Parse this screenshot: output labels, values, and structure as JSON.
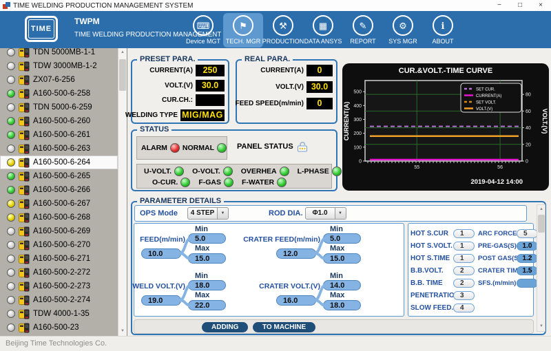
{
  "window": {
    "title": "TIME WELDING PRODUCTION MANAGEMENT SYSTEM",
    "minimize_glyph": "−",
    "maximize_glyph": "□",
    "close_glyph": "×"
  },
  "header": {
    "app_abbr": "TWPM",
    "app_name": "TIME WELDING PRODUCTION MANAGEMENT SYSTEM",
    "logo_text": "TIME",
    "nav": [
      {
        "label": "Device MGT",
        "icon": "device-monitor-icon",
        "glyph": "⌨",
        "active": false
      },
      {
        "label": "TECH. MGR",
        "icon": "tech-flag-icon",
        "glyph": "⚑",
        "active": true
      },
      {
        "label": "PRODUCTION",
        "icon": "production-workers-icon",
        "glyph": "⚒",
        "active": false
      },
      {
        "label": "DATA ANSYS",
        "icon": "data-analysis-icon",
        "glyph": "▦",
        "active": false
      },
      {
        "label": "REPORT",
        "icon": "report-chart-icon",
        "glyph": "✎",
        "active": false
      },
      {
        "label": "SYS MGR",
        "icon": "system-gear-icon",
        "glyph": "⚙",
        "active": false
      },
      {
        "label": "ABOUT",
        "icon": "about-info-icon",
        "glyph": "ℹ",
        "active": false
      }
    ]
  },
  "sidebar": {
    "items": [
      {
        "label": "TDN 5000MB-1-1",
        "led": "off",
        "selected": false
      },
      {
        "label": "TDW 3000MB-1-2",
        "led": "off",
        "selected": false
      },
      {
        "label": "ZX07-6-256",
        "led": "off",
        "selected": false
      },
      {
        "label": "A160-500-6-258",
        "led": "green",
        "selected": false
      },
      {
        "label": "TDN 5000-6-259",
        "led": "off",
        "selected": false
      },
      {
        "label": "A160-500-6-260",
        "led": "green",
        "selected": false
      },
      {
        "label": "A160-500-6-261",
        "led": "green",
        "selected": false
      },
      {
        "label": "A160-500-6-263",
        "led": "off",
        "selected": false
      },
      {
        "label": "A160-500-6-264",
        "led": "yellow",
        "selected": true
      },
      {
        "label": "A160-500-6-265",
        "led": "green",
        "selected": false
      },
      {
        "label": "A160-500-6-266",
        "led": "green",
        "selected": false
      },
      {
        "label": "A160-500-6-267",
        "led": "yellow",
        "selected": false
      },
      {
        "label": "A160-500-6-268",
        "led": "yellow",
        "selected": false
      },
      {
        "label": "A160-500-6-269",
        "led": "off",
        "selected": false
      },
      {
        "label": "A160-500-6-270",
        "led": "off",
        "selected": false
      },
      {
        "label": "A160-500-6-271",
        "led": "off",
        "selected": false
      },
      {
        "label": "A160-500-2-272",
        "led": "off",
        "selected": false
      },
      {
        "label": "A160-500-2-273",
        "led": "off",
        "selected": false
      },
      {
        "label": "A160-500-2-274",
        "led": "off",
        "selected": false
      },
      {
        "label": "TDW 4000-1-35",
        "led": "off",
        "selected": false
      },
      {
        "label": "A160-500-23",
        "led": "off",
        "selected": false
      }
    ]
  },
  "preset": {
    "title": "PRESET PARA.",
    "rows": [
      {
        "label": "CURRENT(A)",
        "value": "250",
        "wide": false
      },
      {
        "label": "VOLT.(V)",
        "value": "30.0",
        "wide": false
      },
      {
        "label": "CUR.CH.:",
        "value": "",
        "wide": false
      },
      {
        "label": "WELDING TYPE",
        "value": "MIG/MAG",
        "wide": true
      }
    ]
  },
  "real": {
    "title": "REAL PARA.",
    "rows": [
      {
        "label": "CURRENT(A)",
        "value": "0"
      },
      {
        "label": "VOLT.(V)",
        "value": "30.0"
      },
      {
        "label": "FEED SPEED(m/min)",
        "value": "0"
      }
    ]
  },
  "status": {
    "title": "STATUS",
    "alarm": {
      "label": "ALARM",
      "led": "red"
    },
    "normal": {
      "label": "NORMAL",
      "led": "green"
    },
    "panel_status_label": "PANEL STATUS",
    "indicator_rows": [
      [
        {
          "label": "U-VOLT.",
          "led": "green"
        },
        {
          "label": "O-VOLT.",
          "led": "green"
        },
        {
          "label": "OVERHEA",
          "led": "green"
        },
        {
          "label": "L-PHASE",
          "led": "green"
        }
      ],
      [
        {
          "label": "O-CUR.",
          "led": "green"
        },
        {
          "label": "F-GAS",
          "led": "green"
        },
        {
          "label": "F-WATER",
          "led": "green"
        }
      ]
    ]
  },
  "parameters": {
    "title": "PARAMETER DETAILS",
    "ops_mode_label": "OPS Mode",
    "ops_mode_value": "4 STEP",
    "rod_dia_label": "ROD DIA.",
    "rod_dia_value": "Φ1.0",
    "min_label": "Min",
    "max_label": "Max",
    "groups": [
      {
        "label": "FEED(m/min)",
        "value": "10.0",
        "min": "5.0",
        "max": "15.0"
      },
      {
        "label": "CRATER FEED(m/min)",
        "value": "12.0",
        "min": "5.0",
        "max": "15.0"
      },
      {
        "label": "WELD VOLT.(V)",
        "value": "19.0",
        "min": "18.0",
        "max": "22.0"
      },
      {
        "label": "CRATER VOLT.(V)",
        "value": "16.0",
        "min": "14.0",
        "max": "18.0"
      }
    ],
    "right_rows": [
      [
        {
          "label": "HOT S.CUR",
          "value": "1",
          "style": "gray"
        },
        {
          "label": "ARC FORCE",
          "value": "5",
          "style": "gray"
        }
      ],
      [
        {
          "label": "HOT S.VOLT.",
          "value": "1",
          "style": "gray"
        },
        {
          "label": "PRE-GAS(S)",
          "value": "1.0",
          "style": "blue"
        }
      ],
      [
        {
          "label": "HOT S.TIME",
          "value": "1",
          "style": "gray"
        },
        {
          "label": "POST GAS(S)",
          "value": "1.2",
          "style": "blue"
        }
      ],
      [
        {
          "label": "B.B.VOLT.",
          "value": "2",
          "style": "gray"
        },
        {
          "label": "CRATER TIME(S)",
          "value": "1.5",
          "style": "blue"
        }
      ],
      [
        {
          "label": "B.B. TIME",
          "value": "2",
          "style": "gray"
        },
        {
          "label": "SFS.(m/min)",
          "value": "",
          "style": "blue"
        }
      ],
      [
        {
          "label": "PENETRATION",
          "value": "3",
          "style": "gray"
        }
      ],
      [
        {
          "label": "SLOW FEED.",
          "value": "4",
          "style": "gray"
        }
      ]
    ],
    "adding_label": "ADDING",
    "to_machine_label": "TO MACHINE"
  },
  "footer": {
    "company": "Beijing Time Technologies Co."
  },
  "colors": {
    "header_blue": "#2c6dab",
    "active_nav": "#5e99d0",
    "panel_border": "#2f75b5",
    "value_yellow": "#ffe000",
    "pill_blue": "#85b4e4",
    "button_navy": "#1f4e79",
    "led_green": "#2ec22e",
    "led_red": "#e03030",
    "led_yellow": "#e8d800"
  },
  "chart_data": {
    "type": "line",
    "title": "CUR.&VOLT.-TIME CURVE",
    "left_axis": {
      "label": "CURRENT(A)",
      "min": 0,
      "max": 580,
      "ticks": [
        0,
        100,
        200,
        300,
        400,
        500
      ]
    },
    "right_axis": {
      "label": "VOLT.(V)",
      "min": 0,
      "max": 80,
      "ticks": [
        0,
        20,
        40,
        60,
        80
      ]
    },
    "x_axis": {
      "ticks": [
        "55",
        "56"
      ],
      "timestamp": "2019-04-12 14:00"
    },
    "series": [
      {
        "name": "SET CUR.",
        "axis": "left",
        "value": 250,
        "color": "#b573d8",
        "dash": true
      },
      {
        "name": "CURRENT(A)",
        "axis": "left",
        "value": 0,
        "color": "#e515cf",
        "dash": false
      },
      {
        "name": "SET VOLT.",
        "axis": "right",
        "value": 30,
        "color": "#d8891a",
        "dash": true
      },
      {
        "name": "VOLT.(V)",
        "axis": "right",
        "value": 30,
        "color": "#f0a028",
        "dash": false
      }
    ],
    "grid": true,
    "grid_color": "#2a6b2a",
    "bg": "#111111",
    "legend_position": "top-right"
  }
}
